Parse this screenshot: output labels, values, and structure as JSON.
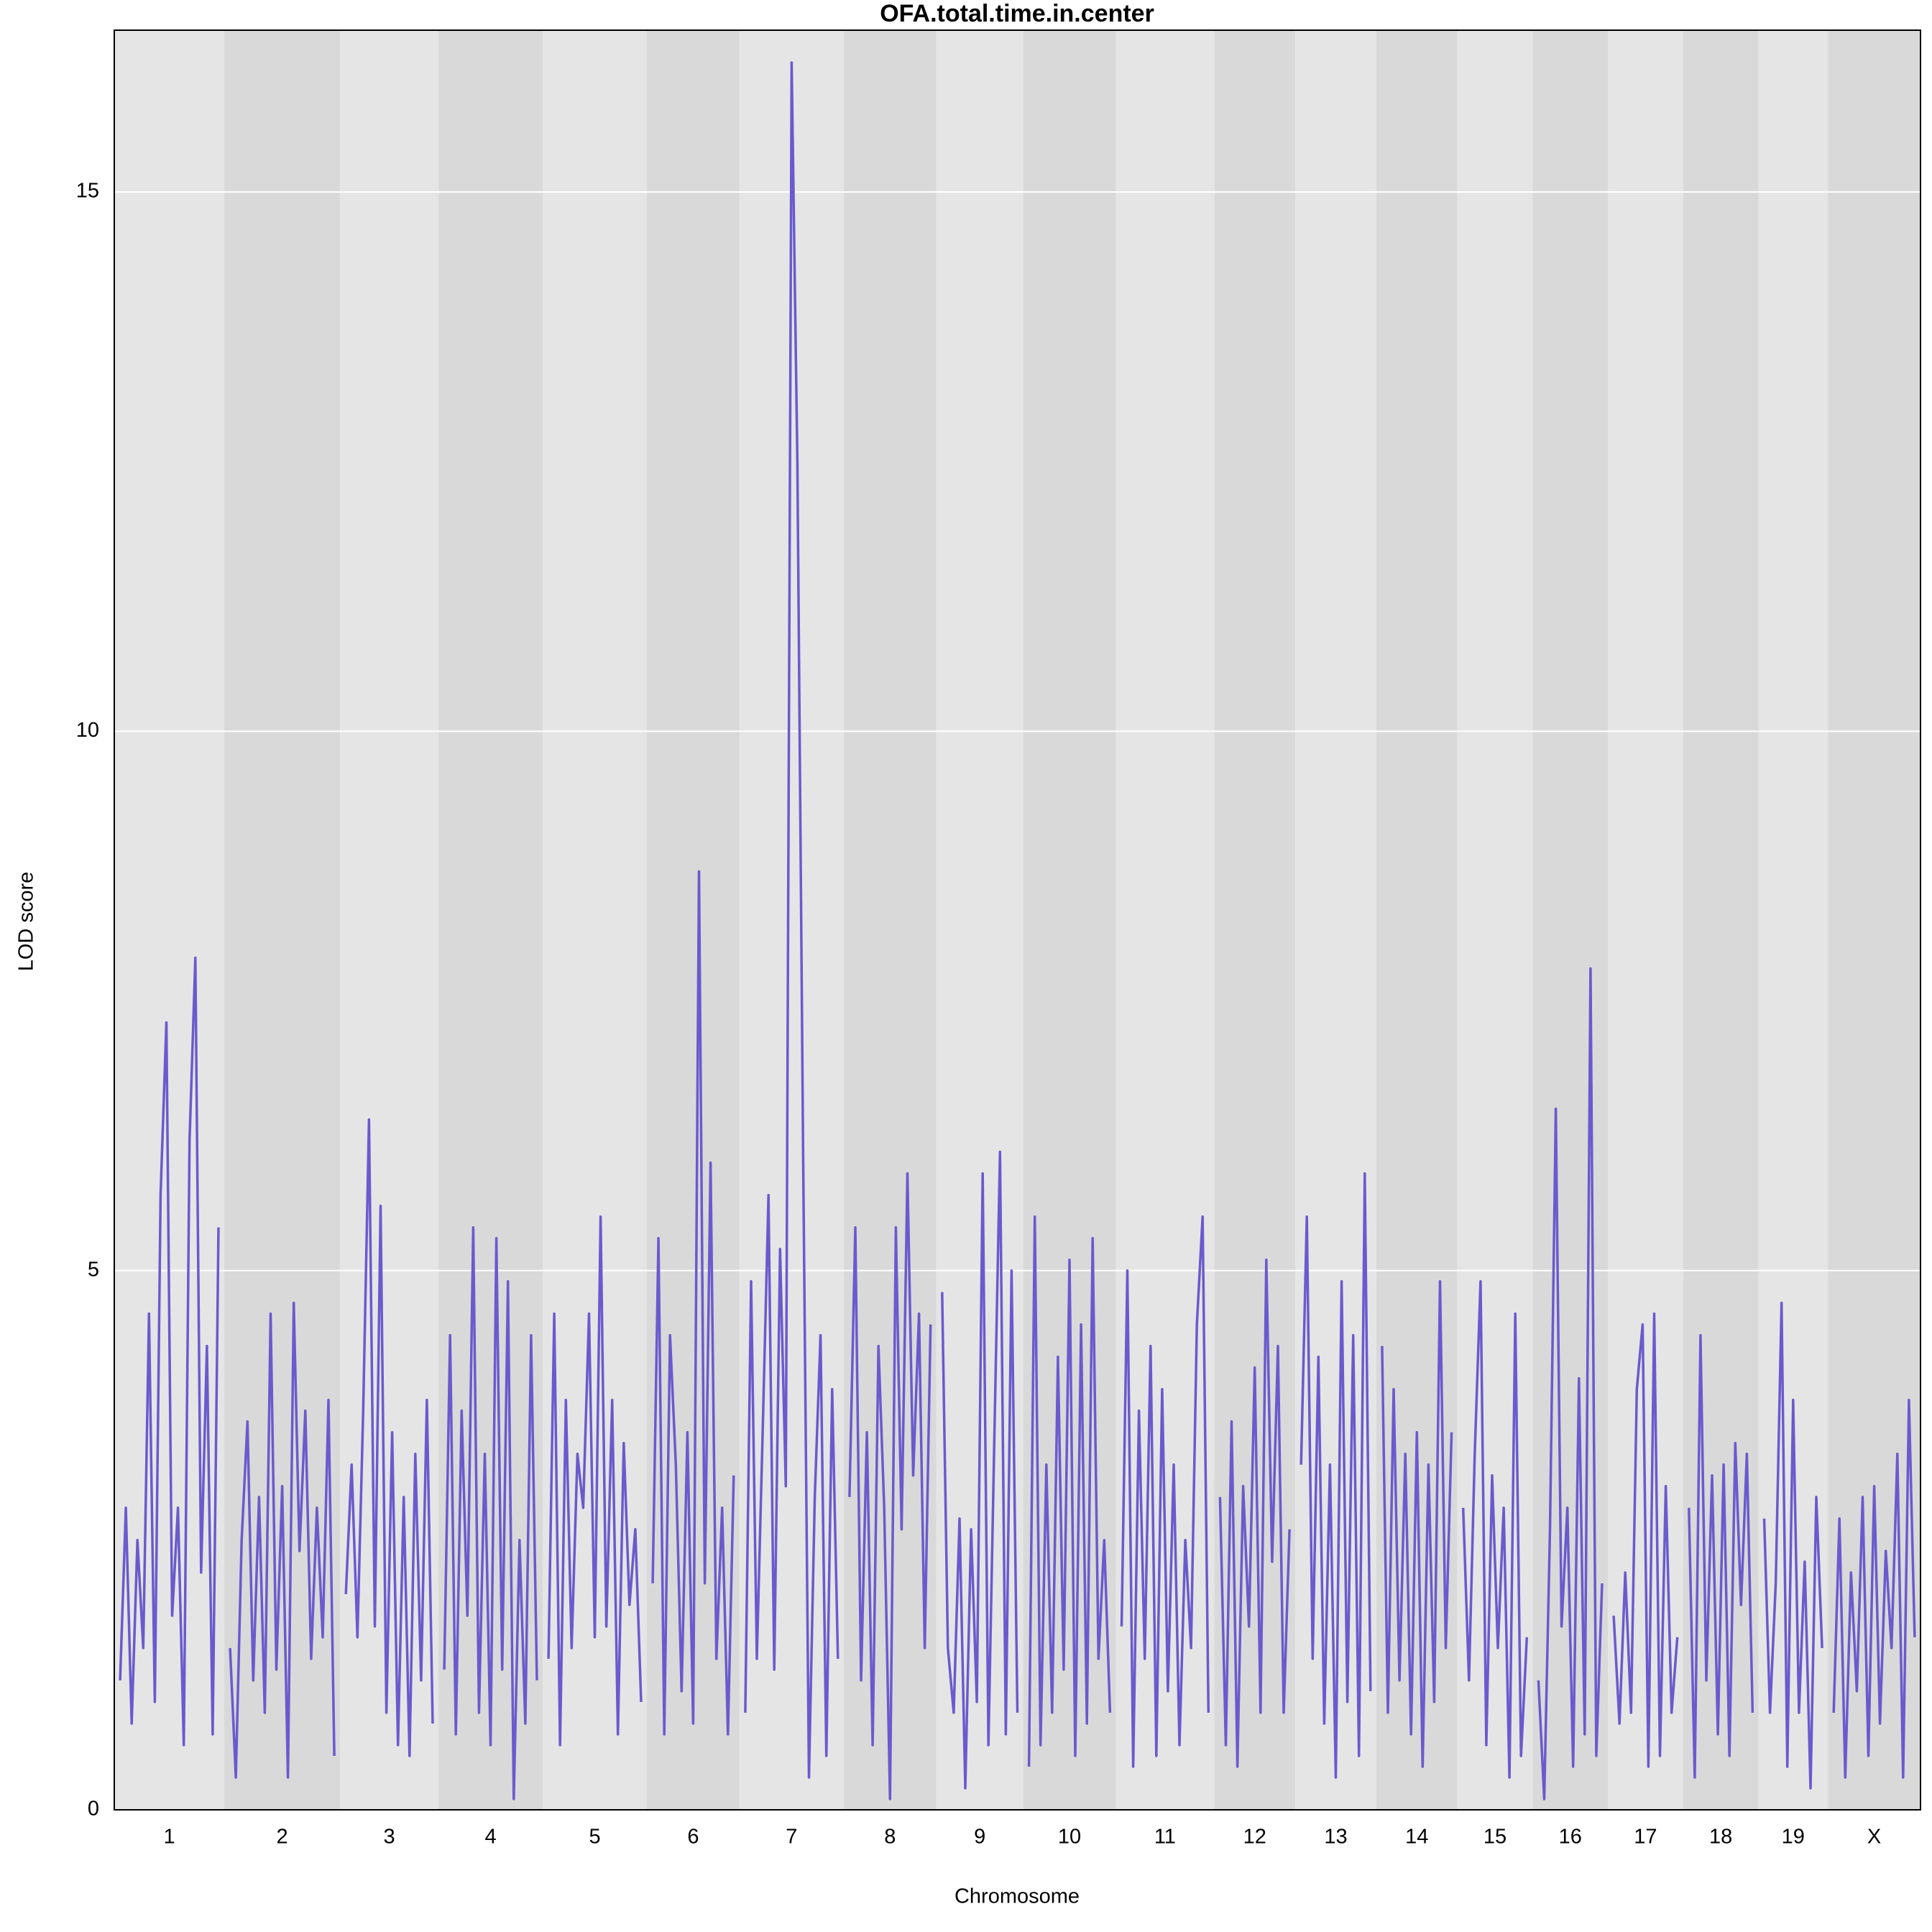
{
  "chart_data": {
    "type": "line",
    "title": "OFA.total.time.in.center",
    "xlabel": "Chromosome",
    "ylabel": "LOD score",
    "color": "#6a5acd",
    "grid": true,
    "band_colors": [
      "#e5e5e5",
      "#d9d9d9"
    ],
    "ylim": [
      0,
      16.5
    ],
    "yticks": [
      0,
      5,
      10,
      15
    ],
    "categories": [
      "1",
      "2",
      "3",
      "4",
      "5",
      "6",
      "7",
      "8",
      "9",
      "10",
      "11",
      "12",
      "13",
      "14",
      "15",
      "16",
      "17",
      "18",
      "19",
      "X"
    ],
    "values": [
      [
        1.2,
        2.8,
        0.8,
        2.5,
        1.5,
        4.6,
        1.0,
        5.7,
        7.3,
        1.8,
        2.8,
        0.6,
        6.2,
        7.9,
        2.2,
        4.3,
        0.7,
        5.4
      ],
      [
        1.5,
        0.3,
        2.5,
        3.6,
        1.2,
        2.9,
        0.9,
        4.6,
        1.3,
        3.0,
        0.3,
        4.7,
        2.4,
        3.7,
        1.4,
        2.8,
        1.6,
        3.8,
        0.5
      ],
      [
        2.0,
        3.2,
        1.6,
        3.7,
        6.4,
        1.7,
        5.6,
        0.9,
        3.5,
        0.6,
        2.9,
        0.5,
        3.3,
        1.2,
        3.8,
        0.8
      ],
      [
        1.3,
        4.4,
        0.7,
        3.7,
        1.8,
        5.4,
        0.9,
        3.3,
        0.6,
        5.3,
        1.3,
        4.9,
        0.1,
        2.5,
        0.8,
        4.4,
        1.2
      ],
      [
        1.4,
        4.6,
        0.6,
        3.8,
        1.5,
        3.3,
        2.8,
        4.6,
        1.6,
        5.5,
        1.7,
        3.8,
        0.7,
        3.4,
        1.9,
        2.6,
        1.0
      ],
      [
        2.1,
        5.3,
        0.7,
        4.4,
        3.2,
        1.1,
        3.5,
        0.8,
        8.7,
        2.1,
        6.0,
        1.4,
        2.8,
        0.7,
        3.1
      ],
      [
        0.9,
        4.9,
        1.4,
        3.5,
        5.7,
        1.3,
        5.2,
        3.0,
        16.2,
        12.5,
        6.0,
        0.3,
        2.9,
        4.4,
        0.5,
        3.9,
        1.4
      ],
      [
        2.9,
        5.4,
        1.2,
        3.5,
        0.6,
        4.3,
        2.8,
        0.1,
        5.4,
        2.6,
        5.9,
        3.1,
        4.6,
        1.5,
        4.5
      ],
      [
        4.8,
        1.5,
        0.9,
        2.7,
        0.2,
        2.6,
        1.0,
        5.9,
        0.6,
        3.4,
        6.1,
        0.7,
        5.0,
        0.9
      ],
      [
        0.4,
        5.5,
        0.6,
        3.2,
        0.9,
        4.2,
        1.3,
        5.1,
        0.5,
        4.5,
        0.8,
        5.3,
        1.4,
        2.5,
        0.9
      ],
      [
        1.7,
        5.0,
        0.4,
        3.7,
        1.4,
        4.3,
        0.5,
        3.9,
        1.1,
        3.2,
        0.6,
        2.5,
        1.5,
        4.5,
        5.5,
        0.9
      ],
      [
        2.9,
        0.6,
        3.6,
        0.4,
        3.0,
        1.7,
        4.1,
        0.9,
        5.1,
        2.3,
        4.3,
        0.9,
        2.6
      ],
      [
        3.2,
        5.5,
        1.4,
        4.2,
        0.8,
        3.2,
        0.3,
        4.9,
        1.0,
        4.4,
        0.5,
        5.9,
        1.1
      ],
      [
        4.3,
        0.9,
        3.9,
        1.2,
        3.3,
        0.7,
        3.5,
        0.4,
        3.2,
        1.0,
        4.9,
        1.5,
        3.5
      ],
      [
        2.8,
        1.2,
        3.3,
        4.9,
        0.6,
        3.1,
        1.5,
        2.8,
        0.3,
        4.6,
        0.5,
        1.6
      ],
      [
        1.2,
        0.1,
        2.6,
        6.5,
        1.7,
        2.8,
        0.4,
        4.0,
        0.7,
        7.8,
        0.5,
        2.1
      ],
      [
        1.8,
        0.8,
        2.2,
        0.9,
        3.9,
        4.5,
        0.4,
        4.6,
        0.5,
        3.0,
        0.9,
        1.6
      ],
      [
        2.8,
        0.3,
        4.4,
        1.2,
        3.1,
        0.7,
        3.2,
        0.5,
        3.4,
        1.9,
        3.3,
        0.9
      ],
      [
        2.7,
        0.9,
        2.1,
        4.7,
        0.4,
        3.8,
        0.9,
        2.3,
        0.2,
        2.9,
        1.5
      ],
      [
        0.9,
        2.7,
        0.3,
        2.2,
        1.1,
        2.9,
        0.5,
        3.0,
        0.8,
        2.4,
        1.5,
        3.3,
        0.3,
        3.8,
        1.6
      ]
    ]
  }
}
